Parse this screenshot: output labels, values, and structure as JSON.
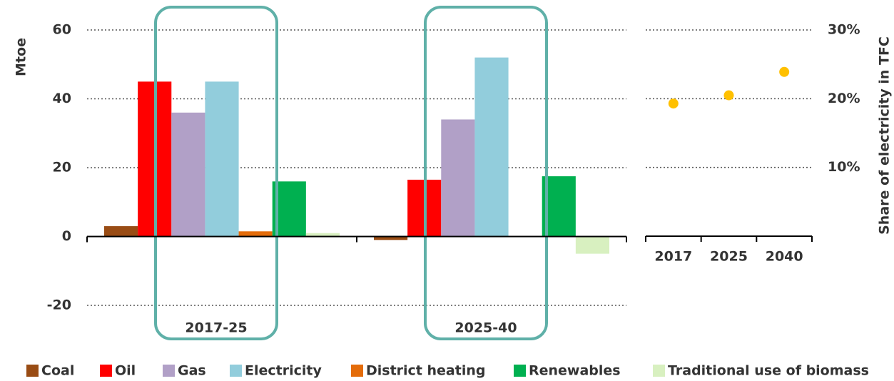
{
  "chart_data": [
    {
      "type": "bar",
      "y_label": "Mtoe",
      "categories": [
        "2017-25",
        "2025-40"
      ],
      "ylim": [
        -20,
        60
      ],
      "yticks": [
        -20,
        0,
        20,
        40,
        60
      ],
      "grid": true,
      "series": [
        {
          "name": "Coal",
          "color": "#994c14",
          "values": [
            3,
            -1
          ]
        },
        {
          "name": "Oil",
          "color": "#ff0000",
          "values": [
            45,
            16.5
          ]
        },
        {
          "name": "Gas",
          "color": "#b1a0c7",
          "values": [
            36,
            34
          ]
        },
        {
          "name": "Electricity",
          "color": "#92cddc",
          "values": [
            45,
            52
          ]
        },
        {
          "name": "District heating",
          "color": "#e46c0a",
          "values": [
            1.5,
            0
          ]
        },
        {
          "name": "Renewables",
          "color": "#00b050",
          "values": [
            16,
            17.5
          ]
        },
        {
          "name": "Traditional use of biomass",
          "color": "#d8f0c0",
          "values": [
            1,
            -5
          ]
        }
      ]
    },
    {
      "type": "scatter",
      "y_label": "Share of electricity in TFC",
      "categories": [
        "2017",
        "2025",
        "2040"
      ],
      "values": [
        19.3,
        20.5,
        23.9
      ],
      "color": "#ffc000",
      "ylim": [
        0,
        30
      ],
      "yticks": [
        {
          "value": 10,
          "label": "10%"
        },
        {
          "value": 20,
          "label": "20%"
        },
        {
          "value": 30,
          "label": "30%"
        }
      ],
      "grid": true
    }
  ]
}
